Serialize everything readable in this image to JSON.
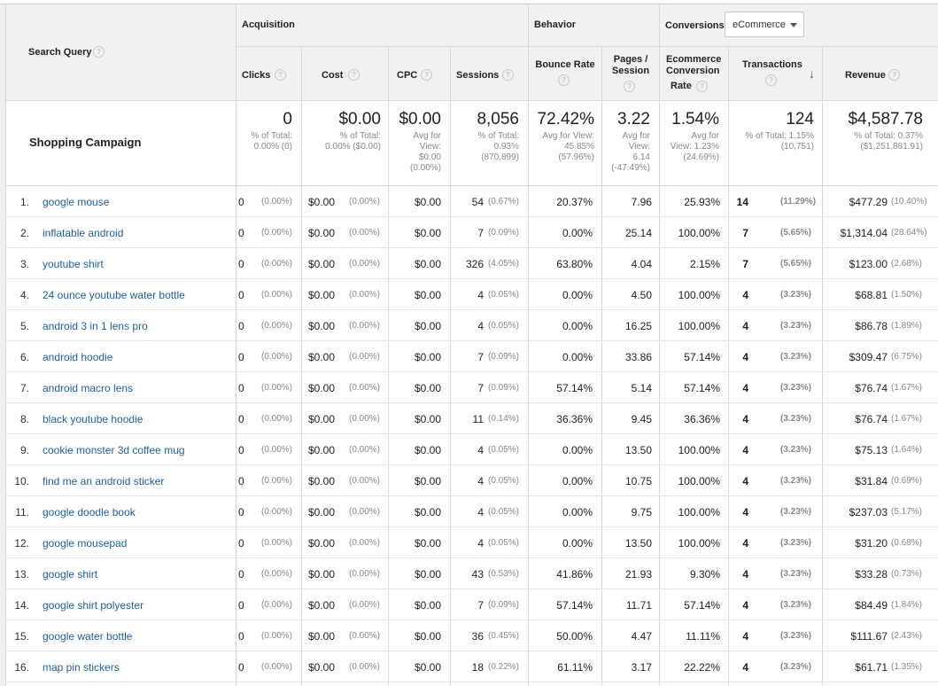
{
  "headers": {
    "search_query": "Search Query",
    "acquisition": "Acquisition",
    "behavior": "Behavior",
    "conversions": "Conversions",
    "conversion_select": "eCommerce",
    "clicks": "Clicks",
    "cost": "Cost",
    "cpc": "CPC",
    "sessions": "Sessions",
    "bounce_rate": "Bounce Rate",
    "pages_session_1": "Pages /",
    "pages_session_2": "Session",
    "ecr_1": "Ecommerce",
    "ecr_2": "Conversion",
    "ecr_3": "Rate",
    "transactions": "Transactions",
    "revenue": "Revenue",
    "help_glyph": "?",
    "sort_arrow": "↓"
  },
  "totals": {
    "label": "Shopping Campaign",
    "clicks": {
      "value": "0",
      "sub1": "% of Total:",
      "sub2": "0.00% (0)"
    },
    "cost": {
      "value": "$0.00",
      "sub1": "% of Total:",
      "sub2": "0.00% ($0.00)"
    },
    "cpc": {
      "value": "$0.00",
      "sub1": "Avg for",
      "sub2": "View:",
      "sub3": "$0.00",
      "sub4": "(0.00%)"
    },
    "sessions": {
      "value": "8,056",
      "sub1": "% of Total:",
      "sub2": "0.93%",
      "sub3": "(870,899)"
    },
    "bounce_rate": {
      "value": "72.42%",
      "sub1": "Avg for View:",
      "sub2": "45.85%",
      "sub3": "(57.96%)"
    },
    "pages_session": {
      "value": "3.22",
      "sub1": "Avg for",
      "sub2": "View:",
      "sub3": "6.14",
      "sub4": "(-47.49%)"
    },
    "ecr": {
      "value": "1.54%",
      "sub1": "Avg for",
      "sub2": "View: 1.23%",
      "sub3": "(24.69%)"
    },
    "transactions": {
      "value": "124",
      "sub1": "% of Total: 1.15%",
      "sub2": "(10,751)"
    },
    "revenue": {
      "value": "$4,587.78",
      "sub1": "% of Total: 0.37%",
      "sub2": "($1,251,881.91)"
    }
  },
  "rows": [
    {
      "idx": "1.",
      "query": "google mouse",
      "clicks": "0",
      "clicks_pct": "(0.00%)",
      "cost": "$0.00",
      "cost_pct": "(0.00%)",
      "cpc": "$0.00",
      "sessions": "54",
      "sessions_pct": "(0.67%)",
      "bounce": "20.37%",
      "pages": "7.96",
      "ecr": "25.93%",
      "trans": "14",
      "trans_pct": "(11.29%)",
      "revenue": "$477.29",
      "revenue_pct": "(10.40%)"
    },
    {
      "idx": "2.",
      "query": "inflatable android",
      "clicks": "0",
      "clicks_pct": "(0.00%)",
      "cost": "$0.00",
      "cost_pct": "(0.00%)",
      "cpc": "$0.00",
      "sessions": "7",
      "sessions_pct": "(0.09%)",
      "bounce": "0.00%",
      "pages": "25.14",
      "ecr": "100.00%",
      "trans": "7",
      "trans_pct": "(5.65%)",
      "revenue": "$1,314.04",
      "revenue_pct": "(28.64%)"
    },
    {
      "idx": "3.",
      "query": "youtube shirt",
      "clicks": "0",
      "clicks_pct": "(0.00%)",
      "cost": "$0.00",
      "cost_pct": "(0.00%)",
      "cpc": "$0.00",
      "sessions": "326",
      "sessions_pct": "(4.05%)",
      "bounce": "63.80%",
      "pages": "4.04",
      "ecr": "2.15%",
      "trans": "7",
      "trans_pct": "(5.65%)",
      "revenue": "$123.00",
      "revenue_pct": "(2.68%)"
    },
    {
      "idx": "4.",
      "query": "24 ounce youtube water bottle",
      "clicks": "0",
      "clicks_pct": "(0.00%)",
      "cost": "$0.00",
      "cost_pct": "(0.00%)",
      "cpc": "$0.00",
      "sessions": "4",
      "sessions_pct": "(0.05%)",
      "bounce": "0.00%",
      "pages": "4.50",
      "ecr": "100.00%",
      "trans": "4",
      "trans_pct": "(3.23%)",
      "revenue": "$68.81",
      "revenue_pct": "(1.50%)"
    },
    {
      "idx": "5.",
      "query": "android 3 in 1 lens pro",
      "clicks": "0",
      "clicks_pct": "(0.00%)",
      "cost": "$0.00",
      "cost_pct": "(0.00%)",
      "cpc": "$0.00",
      "sessions": "4",
      "sessions_pct": "(0.05%)",
      "bounce": "0.00%",
      "pages": "16.25",
      "ecr": "100.00%",
      "trans": "4",
      "trans_pct": "(3.23%)",
      "revenue": "$86.78",
      "revenue_pct": "(1.89%)"
    },
    {
      "idx": "6.",
      "query": "android hoodie",
      "clicks": "0",
      "clicks_pct": "(0.00%)",
      "cost": "$0.00",
      "cost_pct": "(0.00%)",
      "cpc": "$0.00",
      "sessions": "7",
      "sessions_pct": "(0.09%)",
      "bounce": "0.00%",
      "pages": "33.86",
      "ecr": "57.14%",
      "trans": "4",
      "trans_pct": "(3.23%)",
      "revenue": "$309.47",
      "revenue_pct": "(6.75%)"
    },
    {
      "idx": "7.",
      "query": "android macro lens",
      "clicks": "0",
      "clicks_pct": "(0.00%)",
      "cost": "$0.00",
      "cost_pct": "(0.00%)",
      "cpc": "$0.00",
      "sessions": "7",
      "sessions_pct": "(0.09%)",
      "bounce": "57.14%",
      "pages": "5.14",
      "ecr": "57.14%",
      "trans": "4",
      "trans_pct": "(3.23%)",
      "revenue": "$76.74",
      "revenue_pct": "(1.67%)"
    },
    {
      "idx": "8.",
      "query": "black youtube hoodie",
      "clicks": "0",
      "clicks_pct": "(0.00%)",
      "cost": "$0.00",
      "cost_pct": "(0.00%)",
      "cpc": "$0.00",
      "sessions": "11",
      "sessions_pct": "(0.14%)",
      "bounce": "36.36%",
      "pages": "9.45",
      "ecr": "36.36%",
      "trans": "4",
      "trans_pct": "(3.23%)",
      "revenue": "$76.74",
      "revenue_pct": "(1.67%)"
    },
    {
      "idx": "9.",
      "query": "cookie monster 3d coffee mug",
      "clicks": "0",
      "clicks_pct": "(0.00%)",
      "cost": "$0.00",
      "cost_pct": "(0.00%)",
      "cpc": "$0.00",
      "sessions": "4",
      "sessions_pct": "(0.05%)",
      "bounce": "0.00%",
      "pages": "13.50",
      "ecr": "100.00%",
      "trans": "4",
      "trans_pct": "(3.23%)",
      "revenue": "$75.13",
      "revenue_pct": "(1.64%)"
    },
    {
      "idx": "10.",
      "query": "find me an android sticker",
      "clicks": "0",
      "clicks_pct": "(0.00%)",
      "cost": "$0.00",
      "cost_pct": "(0.00%)",
      "cpc": "$0.00",
      "sessions": "4",
      "sessions_pct": "(0.05%)",
      "bounce": "0.00%",
      "pages": "10.75",
      "ecr": "100.00%",
      "trans": "4",
      "trans_pct": "(3.23%)",
      "revenue": "$31.84",
      "revenue_pct": "(0.69%)"
    },
    {
      "idx": "11.",
      "query": "google doodle book",
      "clicks": "0",
      "clicks_pct": "(0.00%)",
      "cost": "$0.00",
      "cost_pct": "(0.00%)",
      "cpc": "$0.00",
      "sessions": "4",
      "sessions_pct": "(0.05%)",
      "bounce": "0.00%",
      "pages": "9.75",
      "ecr": "100.00%",
      "trans": "4",
      "trans_pct": "(3.23%)",
      "revenue": "$237.03",
      "revenue_pct": "(5.17%)"
    },
    {
      "idx": "12.",
      "query": "google mousepad",
      "clicks": "0",
      "clicks_pct": "(0.00%)",
      "cost": "$0.00",
      "cost_pct": "(0.00%)",
      "cpc": "$0.00",
      "sessions": "4",
      "sessions_pct": "(0.05%)",
      "bounce": "0.00%",
      "pages": "13.50",
      "ecr": "100.00%",
      "trans": "4",
      "trans_pct": "(3.23%)",
      "revenue": "$31.20",
      "revenue_pct": "(0.68%)"
    },
    {
      "idx": "13.",
      "query": "google shirt",
      "clicks": "0",
      "clicks_pct": "(0.00%)",
      "cost": "$0.00",
      "cost_pct": "(0.00%)",
      "cpc": "$0.00",
      "sessions": "43",
      "sessions_pct": "(0.53%)",
      "bounce": "41.86%",
      "pages": "21.93",
      "ecr": "9.30%",
      "trans": "4",
      "trans_pct": "(3.23%)",
      "revenue": "$33.28",
      "revenue_pct": "(0.73%)"
    },
    {
      "idx": "14.",
      "query": "google shirt polyester",
      "clicks": "0",
      "clicks_pct": "(0.00%)",
      "cost": "$0.00",
      "cost_pct": "(0.00%)",
      "cpc": "$0.00",
      "sessions": "7",
      "sessions_pct": "(0.09%)",
      "bounce": "57.14%",
      "pages": "11.71",
      "ecr": "57.14%",
      "trans": "4",
      "trans_pct": "(3.23%)",
      "revenue": "$84.49",
      "revenue_pct": "(1.84%)"
    },
    {
      "idx": "15.",
      "query": "google water bottle",
      "clicks": "0",
      "clicks_pct": "(0.00%)",
      "cost": "$0.00",
      "cost_pct": "(0.00%)",
      "cpc": "$0.00",
      "sessions": "36",
      "sessions_pct": "(0.45%)",
      "bounce": "50.00%",
      "pages": "4.47",
      "ecr": "11.11%",
      "trans": "4",
      "trans_pct": "(3.23%)",
      "revenue": "$111.67",
      "revenue_pct": "(2.43%)"
    },
    {
      "idx": "16.",
      "query": "map pin stickers",
      "clicks": "0",
      "clicks_pct": "(0.00%)",
      "cost": "$0.00",
      "cost_pct": "(0.00%)",
      "cpc": "$0.00",
      "sessions": "18",
      "sessions_pct": "(0.22%)",
      "bounce": "61.11%",
      "pages": "3.17",
      "ecr": "22.22%",
      "trans": "4",
      "trans_pct": "(3.23%)",
      "revenue": "$61.71",
      "revenue_pct": "(1.35%)"
    }
  ],
  "colors": {
    "link": "#1e5f9c",
    "header_bg": "#f1f1f1",
    "border": "#d8d8d8",
    "muted": "#888888"
  },
  "icons": {
    "help": "question-circle-icon",
    "sort": "arrow-down-icon",
    "dropdown": "caret-down-icon"
  }
}
